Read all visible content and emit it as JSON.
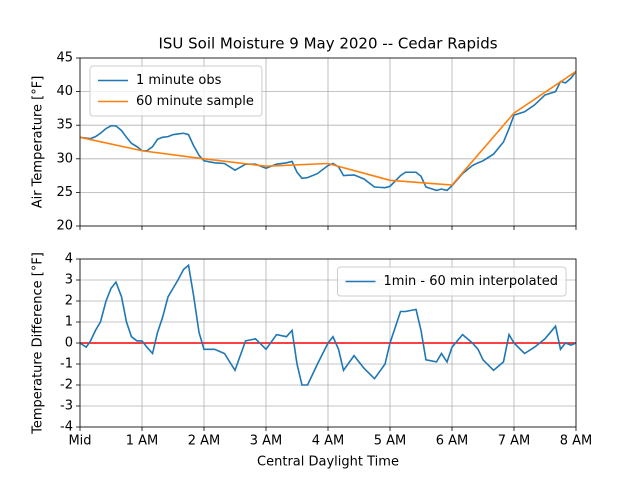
{
  "chart_data": [
    {
      "type": "line",
      "title": "ISU Soil Moisture 9 May 2020 -- Cedar Rapids",
      "ylabel": "Air Temperature [°F]",
      "xlim": [
        0,
        8
      ],
      "xticks": [
        0,
        1,
        2,
        3,
        4,
        5,
        6,
        7,
        8
      ],
      "ylim": [
        20,
        45
      ],
      "yticks": [
        20,
        25,
        30,
        35,
        40,
        45
      ],
      "grid": true,
      "legend": "upper left",
      "series": [
        {
          "name": "1 minute obs",
          "color": "#1f77b4",
          "x": [
            0,
            0.17,
            0.25,
            0.33,
            0.42,
            0.5,
            0.58,
            0.67,
            0.75,
            0.83,
            0.92,
            1.0,
            1.08,
            1.17,
            1.25,
            1.33,
            1.42,
            1.5,
            1.58,
            1.67,
            1.75,
            1.83,
            1.92,
            2.0,
            2.17,
            2.33,
            2.5,
            2.67,
            2.83,
            3.0,
            3.17,
            3.33,
            3.42,
            3.5,
            3.58,
            3.67,
            3.83,
            4.0,
            4.08,
            4.17,
            4.25,
            4.42,
            4.58,
            4.75,
            4.92,
            5.0,
            5.17,
            5.25,
            5.42,
            5.5,
            5.58,
            5.75,
            5.83,
            5.92,
            6.0,
            6.17,
            6.33,
            6.42,
            6.5,
            6.67,
            6.83,
            6.92,
            7.0,
            7.17,
            7.33,
            7.5,
            7.67,
            7.75,
            7.83,
            7.92,
            8.0
          ],
          "values": [
            33.2,
            33.0,
            33.3,
            33.8,
            34.5,
            34.9,
            34.9,
            34.2,
            33.2,
            32.3,
            31.8,
            31.2,
            31.2,
            31.8,
            32.9,
            33.2,
            33.3,
            33.6,
            33.7,
            33.8,
            33.6,
            32.0,
            30.5,
            29.7,
            29.4,
            29.3,
            28.3,
            29.2,
            29.2,
            28.6,
            29.2,
            29.4,
            29.6,
            28.0,
            27.1,
            27.2,
            27.8,
            29.0,
            29.3,
            28.8,
            27.5,
            27.6,
            27.0,
            25.8,
            25.7,
            25.9,
            27.5,
            28.0,
            28.0,
            27.4,
            25.8,
            25.3,
            25.5,
            25.3,
            26.0,
            27.8,
            29.0,
            29.4,
            29.7,
            30.7,
            32.5,
            34.5,
            36.5,
            37.0,
            38.0,
            39.5,
            40.0,
            41.5,
            41.3,
            42.0,
            43.0
          ]
        },
        {
          "name": "60 minute sample",
          "color": "#ff7f0e",
          "x": [
            0,
            1,
            2,
            3,
            4,
            5,
            6,
            7,
            8
          ],
          "values": [
            33.2,
            31.2,
            30.0,
            28.9,
            29.3,
            26.8,
            26.1,
            36.8,
            43.0
          ]
        }
      ]
    },
    {
      "type": "line",
      "ylabel": "Temperature Difference [°F]",
      "xlabel": "Central Daylight Time",
      "xlim": [
        0,
        8
      ],
      "xticks": [
        {
          "value": 0,
          "label": "Mid"
        },
        {
          "value": 1,
          "label": "1 AM"
        },
        {
          "value": 2,
          "label": "2 AM"
        },
        {
          "value": 3,
          "label": "3 AM"
        },
        {
          "value": 4,
          "label": "4 AM"
        },
        {
          "value": 5,
          "label": "5 AM"
        },
        {
          "value": 6,
          "label": "6 AM"
        },
        {
          "value": 7,
          "label": "7 AM"
        },
        {
          "value": 8,
          "label": "8 AM"
        }
      ],
      "ylim": [
        -4,
        4
      ],
      "yticks": [
        -4,
        -3,
        -2,
        -1,
        0,
        1,
        2,
        3,
        4
      ],
      "grid": true,
      "legend": "upper right",
      "reference_line": {
        "value": 0,
        "color": "#ff0000"
      },
      "series": [
        {
          "name": "1min - 60 min interpolated",
          "color": "#1f77b4",
          "x": [
            0,
            0.1,
            0.17,
            0.25,
            0.33,
            0.42,
            0.5,
            0.58,
            0.67,
            0.75,
            0.83,
            0.92,
            1.0,
            1.08,
            1.17,
            1.25,
            1.33,
            1.42,
            1.5,
            1.58,
            1.67,
            1.75,
            1.83,
            1.92,
            2.0,
            2.17,
            2.33,
            2.5,
            2.67,
            2.83,
            3.0,
            3.17,
            3.33,
            3.42,
            3.5,
            3.58,
            3.67,
            3.83,
            4.0,
            4.08,
            4.17,
            4.25,
            4.42,
            4.58,
            4.75,
            4.92,
            5.0,
            5.17,
            5.25,
            5.42,
            5.5,
            5.58,
            5.75,
            5.83,
            5.92,
            6.0,
            6.17,
            6.33,
            6.42,
            6.5,
            6.67,
            6.83,
            6.92,
            7.0,
            7.17,
            7.33,
            7.5,
            7.67,
            7.75,
            7.83,
            7.92,
            8.0
          ],
          "values": [
            0,
            -0.2,
            0.1,
            0.6,
            1.0,
            2.0,
            2.6,
            2.9,
            2.2,
            1.0,
            0.3,
            0.1,
            0.1,
            -0.2,
            -0.5,
            0.5,
            1.2,
            2.2,
            2.6,
            3.0,
            3.5,
            3.7,
            2.3,
            0.5,
            -0.3,
            -0.3,
            -0.5,
            -1.3,
            0.1,
            0.2,
            -0.3,
            0.4,
            0.3,
            0.6,
            -1.0,
            -2.0,
            -2.0,
            -1.0,
            0.0,
            0.3,
            -0.3,
            -1.3,
            -0.6,
            -1.2,
            -1.7,
            -1.0,
            0.0,
            1.5,
            1.5,
            1.6,
            0.6,
            -0.8,
            -0.9,
            -0.5,
            -0.9,
            -0.2,
            0.4,
            0.0,
            -0.3,
            -0.8,
            -1.3,
            -0.9,
            0.4,
            0.0,
            -0.5,
            -0.2,
            0.2,
            0.8,
            -0.3,
            0.0,
            -0.1,
            0.0
          ]
        }
      ]
    }
  ]
}
